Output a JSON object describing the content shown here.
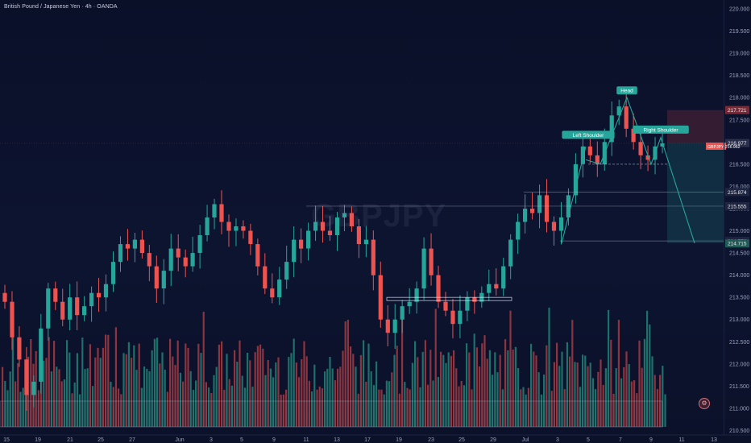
{
  "header": {
    "title": "British Pound / Japanese Yen · 4h · OANDA",
    "watermark": "GBPJPY"
  },
  "colors": {
    "background": "#0c1126",
    "up": "#26a69a",
    "down": "#ef5350",
    "up_volume": "#1f6f6a",
    "down_volume": "#8a3540",
    "pattern_label": "#26a69a",
    "last_price": "#ef5350"
  },
  "icons": [
    "settings-icon"
  ],
  "chart_data": {
    "type": "candlestick",
    "title": "British Pound / Japanese Yen · 4h · OANDA",
    "symbol": "GBPJPY",
    "timeframe": "4h",
    "source": "OANDA",
    "ylim": [
      210.4,
      220.2
    ],
    "y_ticks": [
      "220.000",
      "219.500",
      "219.000",
      "218.500",
      "218.000",
      "217.500",
      "216.500",
      "216.000",
      "215.500",
      "215.000",
      "214.500",
      "214.000",
      "213.500",
      "213.000",
      "212.500",
      "212.000",
      "211.500",
      "211.000",
      "210.500"
    ],
    "x_ticks": [
      "15",
      "19",
      "21",
      "25",
      "27",
      "Jun",
      "3",
      "5",
      "9",
      "11",
      "13",
      "17",
      "19",
      "23",
      "25",
      "29",
      "Jul",
      "3",
      "5",
      "7",
      "9",
      "11",
      "13",
      "15",
      "17"
    ],
    "price_closes": [
      213.4,
      212.6,
      212.1,
      211.3,
      211.6,
      212.8,
      213.7,
      213.4,
      213.0,
      213.5,
      213.1,
      213.3,
      213.6,
      213.5,
      213.8,
      214.3,
      214.7,
      214.6,
      214.8,
      214.5,
      214.2,
      213.7,
      214.1,
      214.6,
      214.4,
      214.2,
      214.5,
      214.9,
      215.3,
      215.6,
      215.2,
      215.0,
      215.1,
      215.0,
      214.7,
      214.2,
      213.7,
      213.5,
      213.9,
      214.3,
      214.8,
      214.6,
      215.0,
      215.2,
      215.0,
      214.9,
      215.3,
      215.4,
      215.1,
      214.7,
      214.8,
      214.0,
      213.0,
      212.7,
      213.0,
      213.3,
      213.4,
      213.7,
      214.6,
      214.0,
      213.4,
      213.2,
      212.9,
      213.2,
      213.5,
      213.4,
      213.6,
      213.8,
      213.7,
      214.2,
      214.8,
      215.2,
      215.5,
      215.4,
      215.8,
      215.2,
      215.0,
      215.3,
      215.8,
      216.5,
      216.9,
      216.7,
      216.5,
      217.0,
      217.6,
      217.8,
      217.3,
      217.0,
      216.7,
      216.6,
      216.9,
      216.97
    ],
    "candles_low_reference": {
      "last_price": "216.977",
      "symbol_tag": "GBPJPY",
      "symbol_tag_price": "216.962"
    },
    "price_labels": [
      {
        "text": "217.721",
        "kind": "target-top"
      },
      {
        "text": "216.977",
        "kind": "last-price"
      },
      {
        "text": "215.874",
        "kind": "level"
      },
      {
        "text": "215.555",
        "kind": "level"
      },
      {
        "text": "214.772",
        "kind": "level"
      },
      {
        "text": "214.715",
        "kind": "stop"
      }
    ],
    "annotations": [
      {
        "text": "Head",
        "pattern": "head-and-shoulders"
      },
      {
        "text": "Left Shoulder",
        "pattern": "head-and-shoulders"
      },
      {
        "text": "Right Shoulder",
        "pattern": "head-and-shoulders"
      }
    ],
    "horizontal_levels": [
      215.874,
      215.555,
      214.772,
      216.5,
      213.45
    ],
    "volume_indicator": true,
    "grid": false,
    "legend": "none"
  }
}
